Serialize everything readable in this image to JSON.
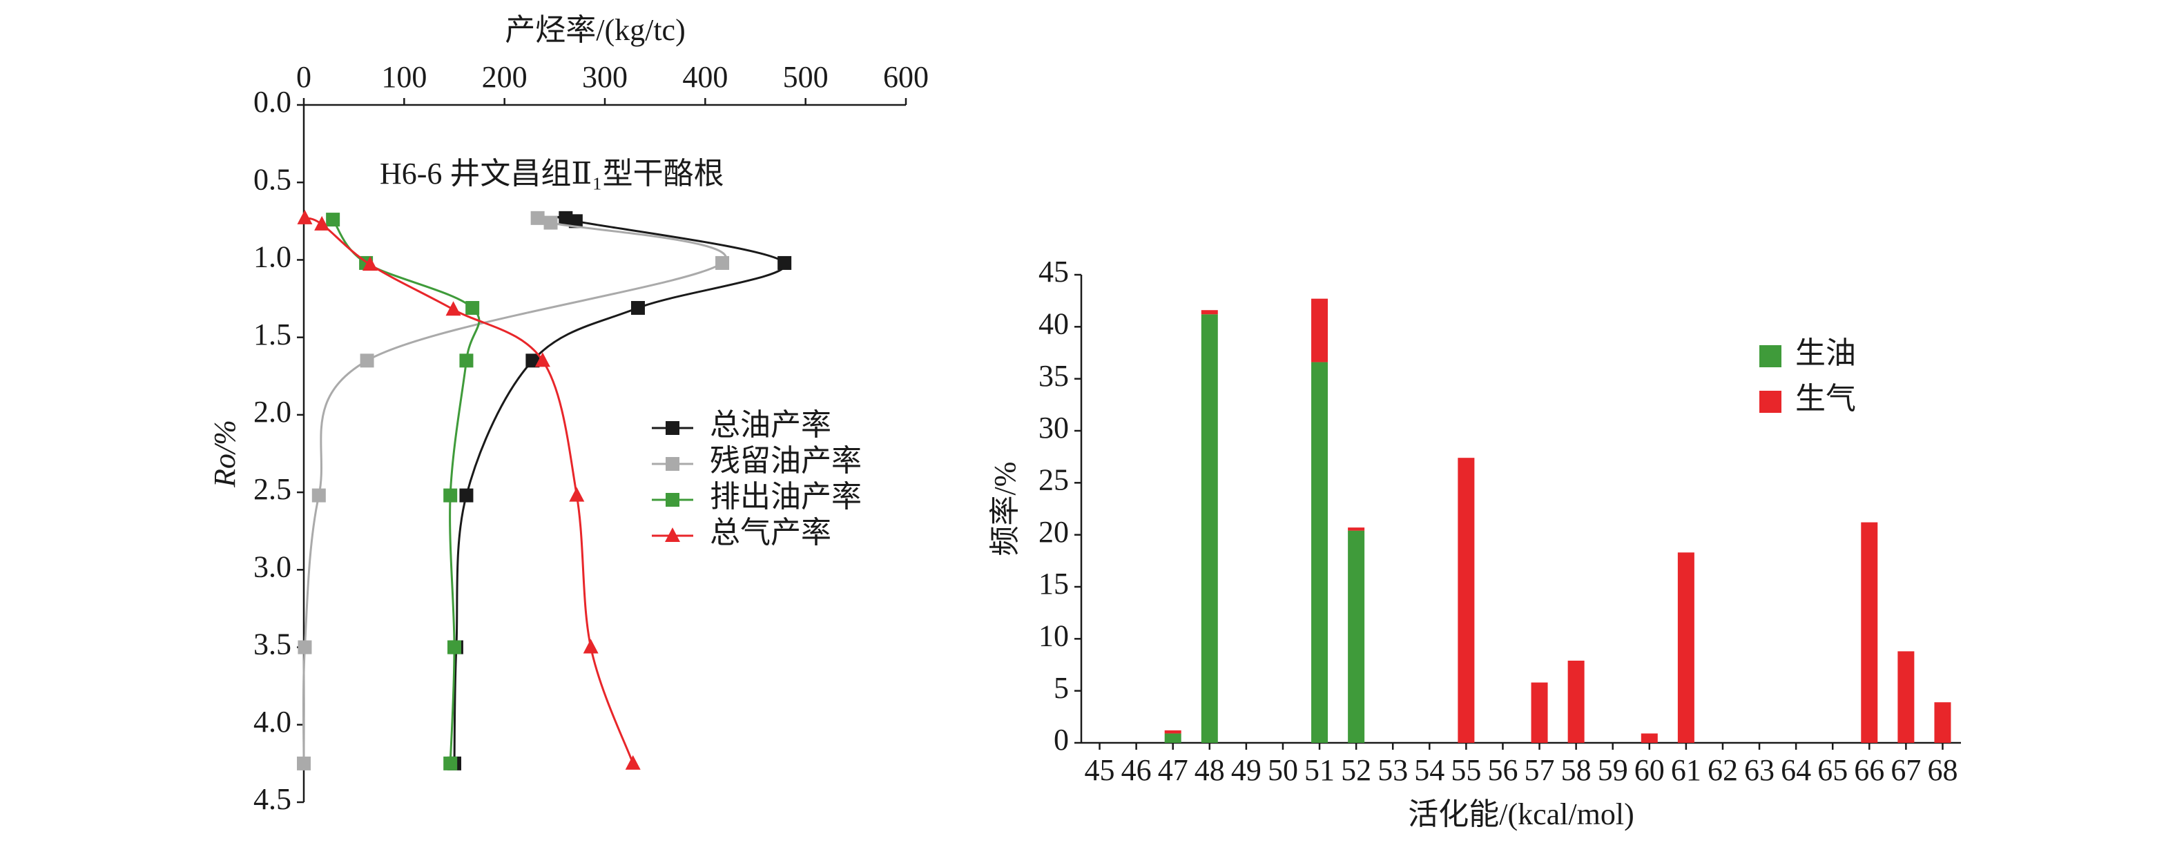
{
  "chart_data": [
    {
      "type": "line",
      "xlabel": "产烃率/(kg/tc)",
      "ylabel": "Ro/%",
      "annotation": "H6-6 井文昌组Ⅱ₁型干酪根",
      "xlim": [
        0,
        600
      ],
      "xticks": [
        0,
        100,
        200,
        300,
        400,
        500,
        600
      ],
      "ylim": [
        0,
        4.5
      ],
      "y_inverted": true,
      "x_axis_position": "top",
      "yticks": [
        {
          "value": 0,
          "label": "0.0"
        },
        0.5,
        {
          "value": 1,
          "label": "1.0"
        },
        1.5,
        {
          "value": 2,
          "label": "2.0"
        },
        2.5,
        {
          "value": 3,
          "label": "3.0"
        },
        3.5,
        {
          "value": 4,
          "label": "4.0"
        },
        4.5
      ],
      "legend": "right",
      "series": [
        {
          "name": "总油产率",
          "color": "#1a1a1a",
          "marker": "square",
          "x": [
            261,
            271,
            479,
            333,
            228,
            162,
            152,
            150
          ],
          "y": [
            0.73,
            0.75,
            1.02,
            1.31,
            1.65,
            2.52,
            3.5,
            4.25
          ]
        },
        {
          "name": "残留油产率",
          "color": "#aaaaaa",
          "marker": "square",
          "x": [
            233,
            246,
            417,
            63,
            15,
            1,
            0
          ],
          "y": [
            0.73,
            0.76,
            1.02,
            1.65,
            2.52,
            3.5,
            4.25
          ]
        },
        {
          "name": "排出油产率",
          "color": "#3f9b3a",
          "marker": "square",
          "x": [
            29,
            62,
            168,
            162,
            146,
            150,
            146
          ],
          "y": [
            0.74,
            1.02,
            1.31,
            1.65,
            2.52,
            3.5,
            4.25
          ]
        },
        {
          "name": "总气产率",
          "color": "#e8262a",
          "marker": "triangle",
          "x": [
            1,
            18,
            66,
            149,
            238,
            272,
            286,
            328
          ],
          "y": [
            0.73,
            0.77,
            1.03,
            1.32,
            1.65,
            2.52,
            3.5,
            4.25
          ]
        }
      ]
    },
    {
      "type": "stacked_bar",
      "xlabel": "活化能/(kcal/mol)",
      "ylabel": "频率/%",
      "categories": [
        "45",
        "46",
        "47",
        "48",
        "49",
        "50",
        "51",
        "52",
        "53",
        "54",
        "55",
        "56",
        "57",
        "58",
        "59",
        "60",
        "61",
        "62",
        "63",
        "64",
        "65",
        "66",
        "67",
        "68"
      ],
      "ylim": [
        0,
        45
      ],
      "yticks": [
        0,
        5,
        10,
        15,
        20,
        25,
        30,
        35,
        40,
        45
      ],
      "legend": "upper right",
      "series": [
        {
          "name": "生油",
          "color": "#3f9b3a",
          "values": [
            0,
            0,
            0.9,
            41.2,
            0,
            0,
            36.6,
            20.4,
            0,
            0,
            0,
            0,
            0,
            0,
            0,
            0,
            0,
            0,
            0,
            0,
            0,
            0,
            0,
            0
          ]
        },
        {
          "name": "生气",
          "color": "#e8262a",
          "values": [
            0,
            0,
            0.3,
            0.4,
            0,
            0,
            6.1,
            0.3,
            0,
            0,
            27.4,
            0,
            5.8,
            7.9,
            0,
            0.9,
            18.3,
            0,
            0,
            0,
            0,
            21.2,
            8.8,
            3.9
          ]
        }
      ]
    }
  ]
}
